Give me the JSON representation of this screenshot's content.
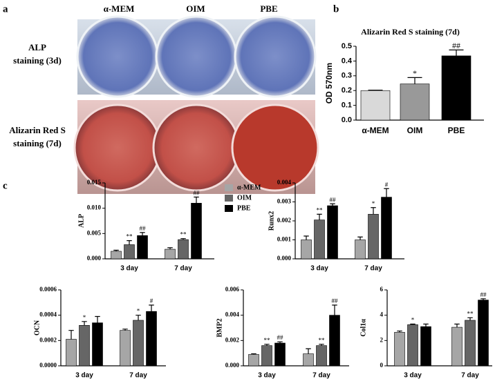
{
  "figure": {
    "panel_labels": [
      "a",
      "b",
      "c"
    ],
    "columns": [
      "α-MEM",
      "OIM",
      "PBE"
    ],
    "rows": [
      [
        "ALP",
        "staining (3d)"
      ],
      [
        "Alizarin Red S",
        "staining (7d)"
      ]
    ]
  },
  "chart_data": [
    {
      "type": "bar",
      "title": "Alizarin Red S staining (7d)",
      "y_label": "OD 570nm",
      "categories": [
        "α-MEM",
        "OIM",
        "PBE"
      ],
      "values": [
        0.2,
        0.245,
        0.435
      ],
      "errors": [
        0.003,
        0.043,
        0.04
      ],
      "colors": [
        "#d9d9d9",
        "#999999",
        "#000000"
      ],
      "annotations": [
        null,
        "*",
        "##"
      ],
      "ylim": [
        0,
        0.5
      ],
      "yticks": [
        {
          "value": 0,
          "label": "0.0"
        },
        0.1,
        0.2,
        0.3,
        0.4,
        0.5
      ]
    },
    {
      "type": "bar",
      "y_label": "ALP",
      "categories": [
        "3 day",
        "7 day"
      ],
      "legend": "right",
      "series": [
        {
          "name": "α-MEM",
          "color": "#a6a6a6",
          "values": [
            0.0015,
            0.0019
          ],
          "errors": [
            0.0002,
            0.0003
          ],
          "annotations": [
            null,
            null
          ]
        },
        {
          "name": "OIM",
          "color": "#666666",
          "values": [
            0.0028,
            0.0038
          ],
          "errors": [
            0.0008,
            0.0002
          ],
          "annotations": [
            "**",
            "**"
          ]
        },
        {
          "name": "PBE",
          "color": "#000000",
          "values": [
            0.0046,
            0.011
          ],
          "errors": [
            0.0006,
            0.0012
          ],
          "annotations": [
            "##",
            "##"
          ]
        }
      ],
      "ylim": [
        0,
        0.015
      ],
      "yticks": [
        {
          "value": 0,
          "label": "0.000"
        },
        0.005,
        {
          "value": 0.01,
          "label": "0.010"
        },
        0.015
      ]
    },
    {
      "type": "bar",
      "y_label": "Runx2",
      "categories": [
        "3 day",
        "7 day"
      ],
      "series": [
        {
          "name": "α-MEM",
          "color": "#a6a6a6",
          "values": [
            0.001,
            0.001
          ],
          "errors": [
            0.0002,
            0.00015
          ],
          "annotations": [
            null,
            null
          ]
        },
        {
          "name": "OIM",
          "color": "#666666",
          "values": [
            0.00205,
            0.00235
          ],
          "errors": [
            0.0003,
            0.00035
          ],
          "annotations": [
            "**",
            "*"
          ]
        },
        {
          "name": "PBE",
          "color": "#000000",
          "values": [
            0.0028,
            0.00325
          ],
          "errors": [
            0.0001,
            0.00045
          ],
          "annotations": [
            "##",
            "#"
          ]
        }
      ],
      "ylim": [
        0,
        0.004
      ],
      "yticks": [
        {
          "value": 0,
          "label": "0.000"
        },
        0.001,
        0.002,
        0.003,
        0.004
      ]
    },
    {
      "type": "bar",
      "y_label": "OCN",
      "categories": [
        "3 day",
        "7 day"
      ],
      "series": [
        {
          "name": "α-MEM",
          "color": "#a6a6a6",
          "values": [
            0.00021,
            0.00028
          ],
          "errors": [
            7e-05,
            1e-05
          ],
          "annotations": [
            null,
            null
          ]
        },
        {
          "name": "OIM",
          "color": "#666666",
          "values": [
            0.00032,
            0.00036
          ],
          "errors": [
            3e-05,
            4e-05
          ],
          "annotations": [
            "*",
            "*"
          ]
        },
        {
          "name": "PBE",
          "color": "#000000",
          "values": [
            0.00034,
            0.00043
          ],
          "errors": [
            5e-05,
            5e-05
          ],
          "annotations": [
            null,
            "#"
          ]
        }
      ],
      "ylim": [
        0,
        0.0006
      ],
      "yticks": [
        {
          "value": 0,
          "label": "0.0000"
        },
        0.0002,
        0.0004,
        0.0006
      ]
    },
    {
      "type": "bar",
      "y_label": "BMP2",
      "categories": [
        "3 day",
        "7 day"
      ],
      "series": [
        {
          "name": "α-MEM",
          "color": "#a6a6a6",
          "values": [
            0.0009,
            0.00095
          ],
          "errors": [
            5e-05,
            0.0004
          ],
          "annotations": [
            null,
            null
          ]
        },
        {
          "name": "OIM",
          "color": "#666666",
          "values": [
            0.0016,
            0.0016
          ],
          "errors": [
            0.0001,
            0.0001
          ],
          "annotations": [
            "**",
            "**"
          ]
        },
        {
          "name": "PBE",
          "color": "#000000",
          "values": [
            0.0018,
            0.004
          ],
          "errors": [
            0.0001,
            0.0008
          ],
          "annotations": [
            "##",
            "##"
          ]
        }
      ],
      "ylim": [
        0,
        0.006
      ],
      "yticks": [
        {
          "value": 0,
          "label": "0.000"
        },
        0.002,
        0.004,
        0.006
      ]
    },
    {
      "type": "bar",
      "y_label": "Col1α",
      "categories": [
        "3 day",
        "7 day"
      ],
      "series": [
        {
          "name": "α-MEM",
          "color": "#a6a6a6",
          "values": [
            2.65,
            3.05
          ],
          "errors": [
            0.1,
            0.25
          ],
          "annotations": [
            null,
            null
          ]
        },
        {
          "name": "OIM",
          "color": "#666666",
          "values": [
            3.25,
            3.6
          ],
          "errors": [
            0.05,
            0.2
          ],
          "annotations": [
            "*",
            "**"
          ]
        },
        {
          "name": "PBE",
          "color": "#000000",
          "values": [
            3.1,
            5.2
          ],
          "errors": [
            0.2,
            0.1
          ],
          "annotations": [
            null,
            "##"
          ]
        }
      ],
      "ylim": [
        0,
        6
      ],
      "yticks": [
        0,
        2,
        4,
        6
      ]
    }
  ]
}
